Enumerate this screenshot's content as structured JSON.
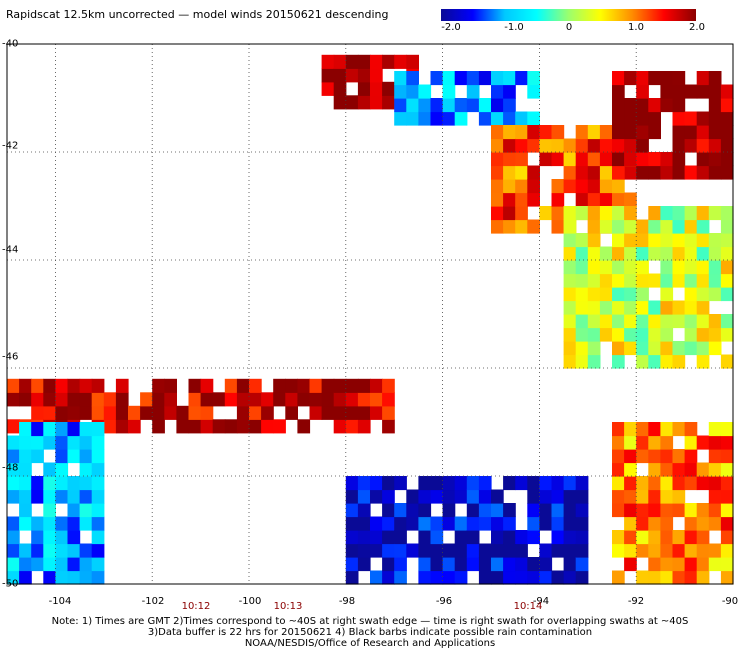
{
  "title": "Rapidscat 12.5km uncorrected — model winds 20150621 descending",
  "colorbar": {
    "labels": [
      "-2.0",
      "-1.0",
      "0",
      "1.0",
      "2.0"
    ],
    "min": -2.0,
    "max": 2.0,
    "colors": [
      "#0a0a96",
      "#0000ff",
      "#00c8ff",
      "#00ffff",
      "#9bff6e",
      "#ffff00",
      "#ff8c00",
      "#ff0000",
      "#8b0000"
    ]
  },
  "time_labels": [
    "10:12",
    "10:13",
    "10:14"
  ],
  "notes": {
    "line1": "Note: 1) Times are GMT 2)Times correspond to ~40S at right swath edge — time is right swath for overlapping swaths at ~40S",
    "line2": "3)Data buffer is 22 hrs for 20150621 4) Black barbs indicate possible rain contamination",
    "line3": "NOAA/NESDIS/Office of Research and Applications"
  },
  "chart_data": {
    "type": "heatmap",
    "title": "Rapidscat 12.5km uncorrected — model winds 20150621 descending",
    "value_range": [
      -2.0,
      2.0
    ],
    "xlim": [
      -105,
      -90
    ],
    "ylim": [
      -50,
      -40
    ],
    "x_ticks": [
      "-104",
      "-102",
      "-100",
      "-98",
      "-96",
      "-94",
      "-92",
      "-90"
    ],
    "y_ticks": [
      "-40",
      "-42",
      "-44",
      "-46",
      "-48",
      "-50"
    ],
    "grid": true,
    "colorbar_position": "top-right",
    "time_ticks": [
      {
        "label": "10:12",
        "lon": -101.3
      },
      {
        "label": "10:13",
        "lon": -99.5
      },
      {
        "label": "10:14",
        "lon": -94.5
      }
    ],
    "regions": [
      {
        "name": "upper swath NW edge (strong positive)",
        "lon": [
          -98.5,
          -96.5
        ],
        "lat": [
          -40.3,
          -41.2
        ],
        "value": 1.8
      },
      {
        "name": "upper swath inner band (negative)",
        "lon": [
          -97.0,
          -94.0
        ],
        "lat": [
          -40.5,
          -41.5
        ],
        "value": -1.0
      },
      {
        "name": "upper swath central (positive)",
        "lon": [
          -95.0,
          -92.0
        ],
        "lat": [
          -41.5,
          -43.5
        ],
        "value": 1.2
      },
      {
        "name": "upper swath east (strong positive)",
        "lon": [
          -92.5,
          -90.0
        ],
        "lat": [
          -40.5,
          -42.5
        ],
        "value": 2.0
      },
      {
        "name": "upper swath southern tail (mixed)",
        "lon": [
          -93.5,
          -90.0
        ],
        "lat": [
          -43.0,
          -46.0
        ],
        "value": 0.3
      },
      {
        "name": "lower swath northern rim (strong positive)",
        "lon": [
          -105.0,
          -97.0
        ],
        "lat": [
          -46.3,
          -47.2
        ],
        "value": 1.8
      },
      {
        "name": "lower swath west (negative)",
        "lon": [
          -105.0,
          -103.0
        ],
        "lat": [
          -47.0,
          -50.0
        ],
        "value": -1.0
      },
      {
        "name": "lower swath central (strong negative)",
        "lon": [
          -98.0,
          -93.0
        ],
        "lat": [
          -48.0,
          -50.0
        ],
        "value": -1.8
      },
      {
        "name": "lower swath east (positive)",
        "lon": [
          -92.5,
          -90.0
        ],
        "lat": [
          -47.0,
          -50.0
        ],
        "value": 1.0
      }
    ]
  }
}
